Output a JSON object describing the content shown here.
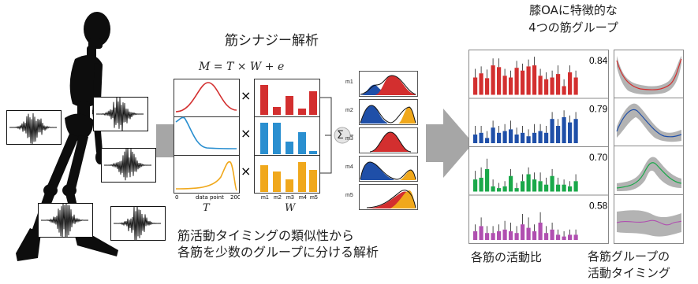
{
  "header": {
    "synergy_title": "筋シナジー解析",
    "oa_title_line1": "膝OAに特徴的な",
    "oa_title_line2": "4つの筋グループ"
  },
  "equation": "M = T × W + e",
  "description_line1": "筋活動タイミングの類似性から",
  "description_line2": "各筋を少数のグループに分ける解析",
  "t_panel": {
    "axis_label": "data point",
    "tick_start": "0",
    "tick_end": "200",
    "symbol": "T"
  },
  "w_panel": {
    "categories": [
      "m1",
      "m2",
      "m3",
      "m4",
      "m5"
    ],
    "symbol": "W"
  },
  "multiply_symbol": "×",
  "sum_symbol": "Σ",
  "muscle_labels": [
    "m1",
    "m2",
    "m3",
    "m4",
    "m5"
  ],
  "group_values": [
    "0.84",
    "0.79",
    "0.70",
    "0.58"
  ],
  "bottom_labels": {
    "ratio": "各筋の活動比",
    "timing_line1": "各筋グループの",
    "timing_line2": "活動タイミング"
  },
  "colors": {
    "red": "#d32f2f",
    "blue": "#1f4fa8",
    "light_blue": "#2a8fd0",
    "orange": "#f0a81c",
    "green": "#1aa84a",
    "magenta": "#b04fb0",
    "gray_arrow": "#a6a6a6"
  },
  "chart_data": [
    {
      "type": "bar",
      "name_note": "muscle activation ratios, group 1",
      "values": [
        0.5,
        0.62,
        0.48,
        0.85,
        0.8,
        0.55,
        0.5,
        0.78,
        0.7,
        0.82,
        0.85,
        0.55,
        0.45,
        0.5,
        0.6,
        0.25,
        0.65,
        0.5
      ],
      "errors": [
        0.25,
        0.2,
        0.25,
        0.2,
        0.25,
        0.2,
        0.2,
        0.2,
        0.2,
        0.2,
        0.25,
        0.2,
        0.2,
        0.2,
        0.25,
        0.2,
        0.2,
        0.2
      ],
      "label": "0.84"
    },
    {
      "type": "bar",
      "values": [
        0.25,
        0.3,
        0.15,
        0.45,
        0.3,
        0.35,
        0.4,
        0.25,
        0.3,
        0.2,
        0.3,
        0.35,
        0.3,
        0.7,
        0.5,
        0.75,
        0.6,
        0.7
      ],
      "errors": [
        0.25,
        0.2,
        0.2,
        0.2,
        0.2,
        0.2,
        0.25,
        0.2,
        0.2,
        0.2,
        0.25,
        0.2,
        0.2,
        0.2,
        0.2,
        0.2,
        0.2,
        0.2
      ],
      "label": "0.79"
    },
    {
      "type": "bar",
      "values": [
        0.35,
        0.4,
        0.65,
        0.15,
        0.1,
        0.15,
        0.45,
        0.1,
        0.3,
        0.5,
        0.35,
        0.3,
        0.2,
        0.45,
        0.2,
        0.2,
        0.15,
        0.3
      ],
      "errors": [
        0.25,
        0.3,
        0.3,
        0.2,
        0.15,
        0.15,
        0.2,
        0.15,
        0.2,
        0.2,
        0.2,
        0.25,
        0.2,
        0.2,
        0.2,
        0.15,
        0.15,
        0.2
      ],
      "label": "0.70"
    },
    {
      "type": "bar",
      "values": [
        0.25,
        0.4,
        0.2,
        0.2,
        0.25,
        0.3,
        0.25,
        0.2,
        0.45,
        0.35,
        0.25,
        0.5,
        0.2,
        0.3,
        0.15,
        0.1,
        0.15,
        0.15
      ],
      "errors": [
        0.2,
        0.25,
        0.2,
        0.2,
        0.2,
        0.25,
        0.25,
        0.2,
        0.3,
        0.3,
        0.2,
        0.3,
        0.2,
        0.2,
        0.15,
        0.15,
        0.15,
        0.15
      ],
      "label": "0.58"
    }
  ]
}
